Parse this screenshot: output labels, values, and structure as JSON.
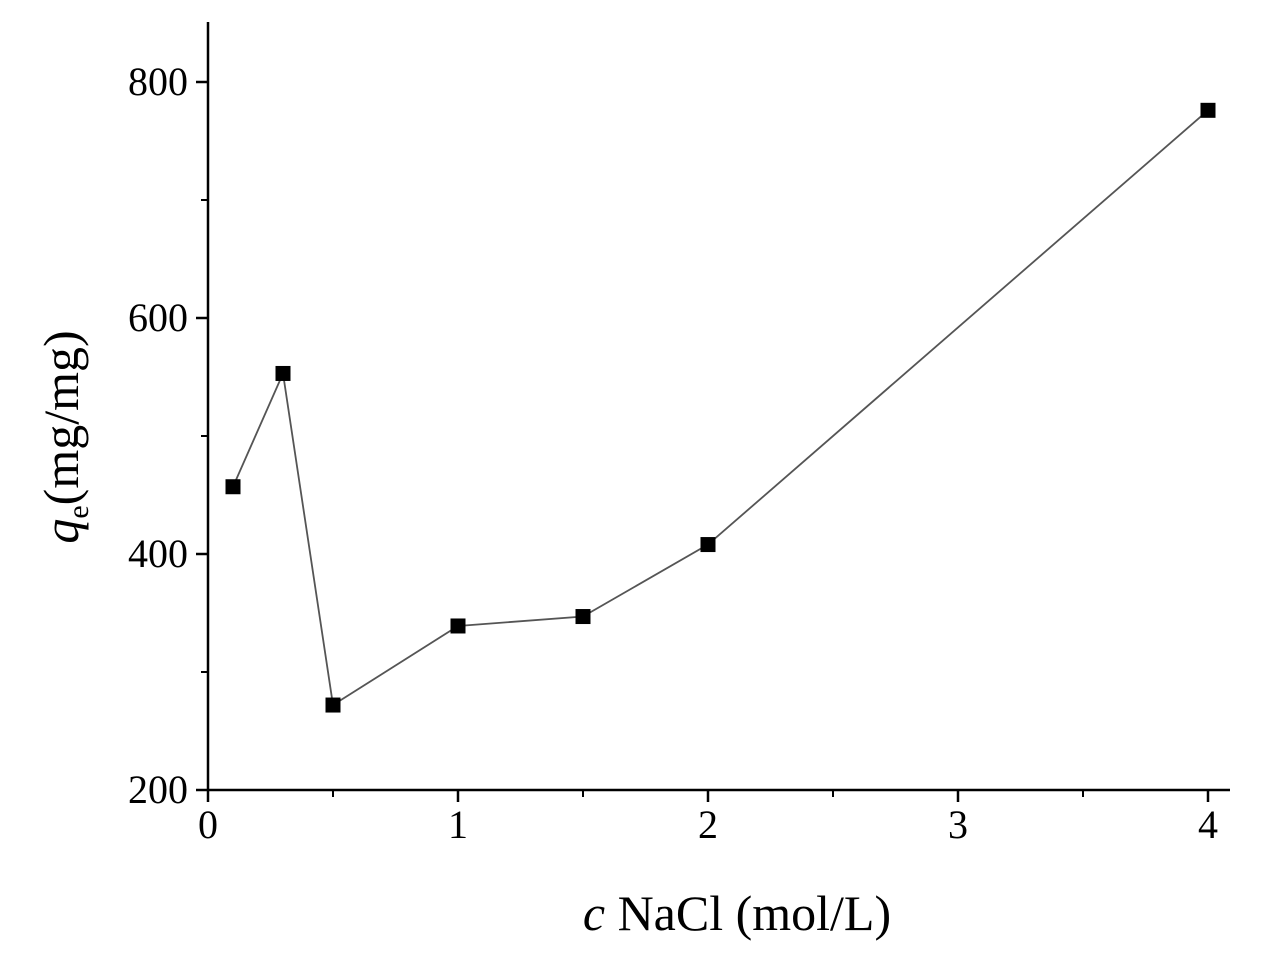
{
  "chart_data": {
    "type": "line",
    "xlabel_var": "c",
    "xlabel_rest": " NaCl (mol/L)",
    "ylabel_var": "q",
    "ylabel_sub": "e",
    "ylabel_rest": "(mg/mg)",
    "xlim": [
      0,
      4.1
    ],
    "ylim": [
      200,
      850
    ],
    "x_major_ticks": [
      0,
      1,
      2,
      3,
      4
    ],
    "x_minor_ticks": [
      0.5,
      1.5,
      2.5,
      3.5
    ],
    "y_major_ticks": [
      200,
      400,
      600,
      800
    ],
    "y_minor_ticks": [
      300,
      500,
      700
    ],
    "x_tick_labels": [
      "0",
      "1",
      "2",
      "3",
      "4"
    ],
    "y_tick_labels": [
      "200",
      "400",
      "600",
      "800"
    ],
    "marker": "square",
    "line_color": "#555555",
    "marker_color": "#000000",
    "series": [
      {
        "x": [
          0.1,
          0.3,
          0.5,
          1.0,
          1.5,
          2.0,
          4.0
        ],
        "values": [
          457,
          553,
          272,
          339,
          347,
          408,
          776
        ]
      }
    ]
  }
}
